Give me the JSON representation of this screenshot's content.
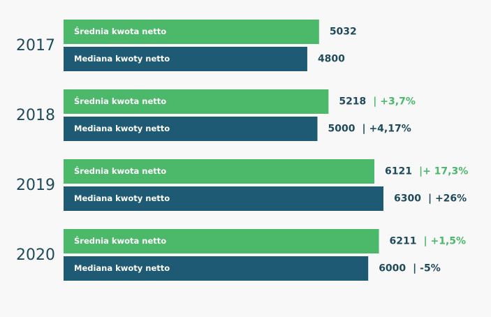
{
  "chart_data": {
    "type": "hbar-grouped",
    "categories": [
      "2017",
      "2018",
      "2019",
      "2020"
    ],
    "series": [
      {
        "name": "Średnia kwota netto",
        "color": "#4bb86a",
        "label_color": "#1f4a5c",
        "change_color": "#4bb86a",
        "values": [
          5032,
          5218,
          6121,
          6211
        ],
        "change_labels": [
          null,
          "| +3,7%",
          "|+ 17,3%",
          "| +1,5%"
        ]
      },
      {
        "name": "Mediana kwoty netto",
        "color": "#1e5a73",
        "label_color": "#1f4a5c",
        "change_color": "#1f4a5c",
        "values": [
          4800,
          5000,
          6300,
          6000
        ],
        "change_labels": [
          null,
          "| +4,17%",
          "| +26%",
          "| -5%"
        ]
      }
    ]
  }
}
